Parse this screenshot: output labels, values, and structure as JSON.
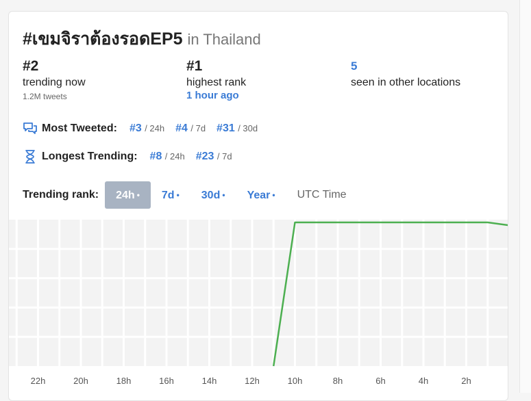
{
  "header": {
    "hashtag": "#เขมจิราต้องรอดEP5",
    "location_text": "in Thailand"
  },
  "stats": [
    {
      "value": "#2",
      "label": "trending now",
      "sub": "1.2M tweets"
    },
    {
      "value": "#1",
      "label": "highest rank",
      "sub": "1 hour ago"
    },
    {
      "value": "5",
      "label": "seen in other locations",
      "sub": ""
    }
  ],
  "most_tweeted": {
    "label": "Most Tweeted:",
    "icon": "chat-bubbles-icon",
    "ranks": [
      {
        "rank": "#3",
        "period": "/ 24h"
      },
      {
        "rank": "#4",
        "period": "/ 7d"
      },
      {
        "rank": "#31",
        "period": "/ 30d"
      }
    ]
  },
  "longest_trending": {
    "label": "Longest Trending:",
    "icon": "hourglass-icon",
    "ranks": [
      {
        "rank": "#8",
        "period": "/ 24h"
      },
      {
        "rank": "#23",
        "period": "/ 7d"
      }
    ]
  },
  "trending_rank": {
    "label": "Trending rank:",
    "tabs": [
      {
        "label": "24h",
        "dot": "•",
        "active": true
      },
      {
        "label": "7d",
        "dot": "•",
        "active": false
      },
      {
        "label": "30d",
        "dot": "•",
        "active": false
      },
      {
        "label": "Year",
        "dot": "•",
        "active": false
      }
    ],
    "utc_label": "UTC Time"
  },
  "colors": {
    "accent": "#3a7bd5",
    "line": "#4caf50",
    "grid_bg": "#f3f3f3",
    "active_tab": "#a8b3c2"
  },
  "chart_data": {
    "type": "line",
    "x_tick_labels": [
      "22h",
      "20h",
      "18h",
      "16h",
      "14h",
      "12h",
      "10h",
      "8h",
      "6h",
      "4h",
      "2h"
    ],
    "x_unit": "hours ago",
    "x_range": [
      24,
      0
    ],
    "y_rank_range": [
      50,
      1
    ],
    "series": [
      {
        "values": [
          {
            "hours_ago": 11,
            "rank": 50
          },
          {
            "hours_ago": 10,
            "rank": 1
          },
          {
            "hours_ago": 1,
            "rank": 1
          },
          {
            "hours_ago": 0,
            "rank": 2
          }
        ]
      }
    ],
    "grid": true
  }
}
